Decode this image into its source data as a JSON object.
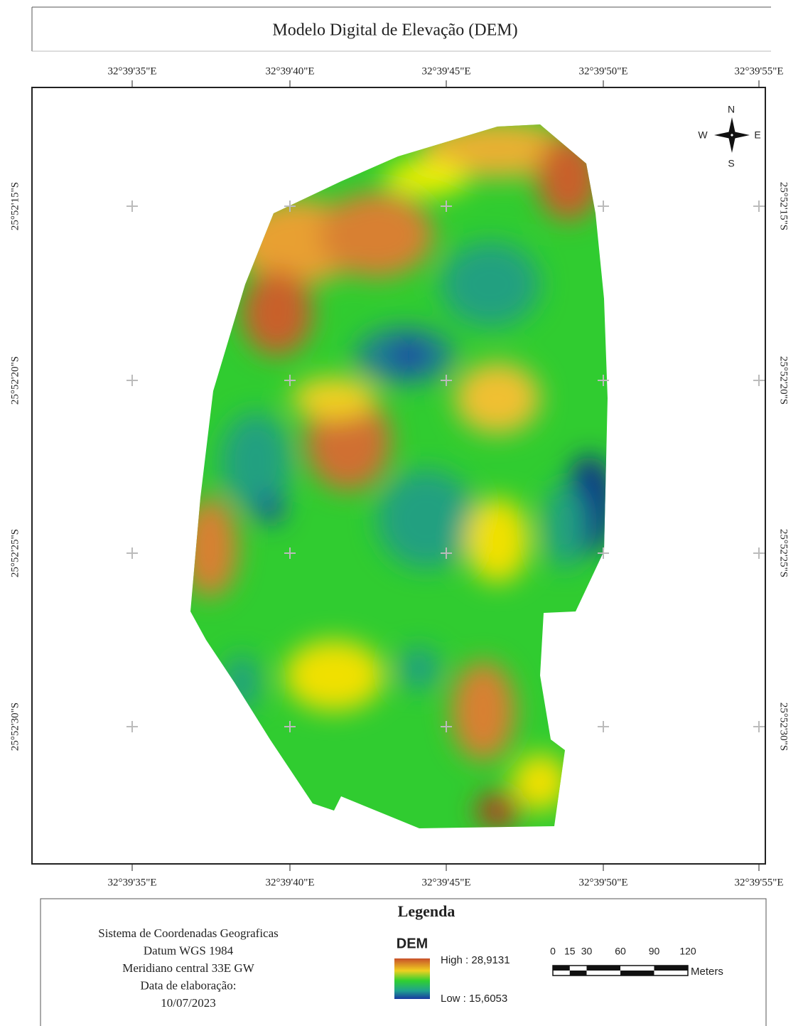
{
  "title": "Modelo Digital de Elevação (DEM)",
  "longitude_labels": [
    "32°39'35\"E",
    "32°39'40\"E",
    "32°39'45\"E",
    "32°39'50\"E",
    "32°39'55\"E"
  ],
  "latitude_labels": [
    "25°52'15\"S",
    "25°52'20\"S",
    "25°52'25\"S",
    "25°52'30\"S"
  ],
  "compass": {
    "n": "N",
    "s": "S",
    "e": "E",
    "w": "W"
  },
  "legend": {
    "title": "Legenda",
    "layer": "DEM",
    "high": "High : 28,9131",
    "low": "Low : 15,6053"
  },
  "info": [
    "Sistema de Coordenadas Geograficas",
    "Datum WGS 1984",
    "Meridiano central 33E GW",
    "Data de elaboração:",
    "10/07/2023"
  ],
  "scale_bar": {
    "labels": [
      "0",
      "15",
      "30",
      "60",
      "90",
      "120"
    ],
    "units": "Meters"
  }
}
